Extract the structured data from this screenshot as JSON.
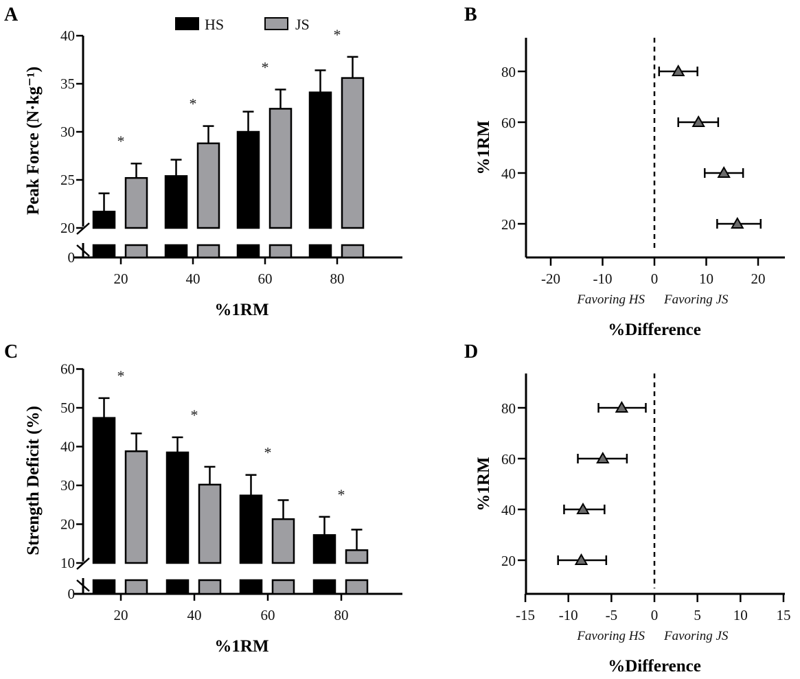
{
  "legend": {
    "items": [
      {
        "label": "HS",
        "color": "#000000"
      },
      {
        "label": "JS",
        "color": "#9e9ea2"
      }
    ]
  },
  "chart_data": [
    {
      "panel": "A",
      "type": "bar",
      "title": "",
      "xlabel": "%1RM",
      "ylabel": "Peak Force (N·kg⁻¹)",
      "categories": [
        "20",
        "40",
        "60",
        "80"
      ],
      "y_ticks": [
        "0",
        "20",
        "25",
        "30",
        "35",
        "40"
      ],
      "ylim": [
        0,
        40
      ],
      "axis_break": [
        0,
        20
      ],
      "series": [
        {
          "name": "HS",
          "values": [
            21.7,
            25.4,
            30.0,
            34.1
          ],
          "error": [
            1.9,
            1.7,
            2.1,
            2.3
          ]
        },
        {
          "name": "JS",
          "values": [
            25.2,
            28.8,
            32.4,
            35.6
          ],
          "error": [
            1.5,
            1.8,
            2.0,
            2.2
          ]
        }
      ],
      "significance": [
        "*",
        "*",
        "*",
        "*"
      ],
      "legend_position": "top-center"
    },
    {
      "panel": "B",
      "type": "scatter",
      "xlabel": "%Difference",
      "ylabel": "%1RM",
      "x_ticks": [
        "-20",
        "-10",
        "0",
        "10",
        "20"
      ],
      "y_ticks": [
        "20",
        "40",
        "60",
        "80"
      ],
      "xlim": [
        -25,
        25
      ],
      "annotations": [
        "Favoring HS",
        "Favoring JS"
      ],
      "reference_line_x": 0,
      "points": [
        {
          "y": 80,
          "x": 4.6,
          "ci": [
            0.9,
            8.3
          ]
        },
        {
          "y": 60,
          "x": 8.5,
          "ci": [
            4.6,
            12.3
          ]
        },
        {
          "y": 40,
          "x": 13.4,
          "ci": [
            9.7,
            17.1
          ]
        },
        {
          "y": 20,
          "x": 16.0,
          "ci": [
            12.1,
            20.5
          ]
        }
      ]
    },
    {
      "panel": "C",
      "type": "bar",
      "xlabel": "%1RM",
      "ylabel": "Strength Deficit (%)",
      "categories": [
        "20",
        "40",
        "60",
        "80"
      ],
      "y_ticks": [
        "0",
        "10",
        "20",
        "30",
        "40",
        "50",
        "60"
      ],
      "ylim": [
        0,
        60
      ],
      "axis_break": [
        0,
        10
      ],
      "series": [
        {
          "name": "HS",
          "values": [
            47.4,
            38.5,
            27.4,
            17.2
          ],
          "error": [
            5.1,
            3.9,
            5.3,
            4.7
          ]
        },
        {
          "name": "JS",
          "values": [
            38.8,
            30.2,
            21.3,
            13.3
          ],
          "error": [
            4.6,
            4.6,
            4.9,
            5.3
          ]
        }
      ],
      "significance": [
        "*",
        "*",
        "*",
        "*"
      ]
    },
    {
      "panel": "D",
      "type": "scatter",
      "xlabel": "%Difference",
      "ylabel": "%1RM",
      "x_ticks": [
        "-15",
        "-10",
        "-5",
        "0",
        "5",
        "10",
        "15"
      ],
      "y_ticks": [
        "20",
        "40",
        "60",
        "80"
      ],
      "xlim": [
        -15,
        15
      ],
      "annotations": [
        "Favoring HS",
        "Favoring JS"
      ],
      "reference_line_x": 0,
      "points": [
        {
          "y": 80,
          "x": -3.8,
          "ci": [
            -6.5,
            -1.0
          ]
        },
        {
          "y": 60,
          "x": -6.0,
          "ci": [
            -8.9,
            -3.2
          ]
        },
        {
          "y": 40,
          "x": -8.3,
          "ci": [
            -10.5,
            -5.8
          ]
        },
        {
          "y": 20,
          "x": -8.5,
          "ci": [
            -11.2,
            -5.6
          ]
        }
      ]
    }
  ]
}
